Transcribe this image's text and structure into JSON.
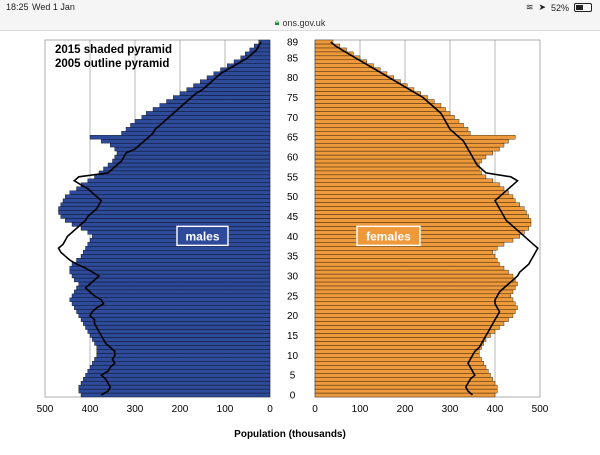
{
  "status_bar": {
    "time": "18:25",
    "date": "Wed 1 Jan",
    "battery": "52%",
    "battery_level": 0.52
  },
  "browser": {
    "url": "ons.gov.uk",
    "lock_icon": "lock-icon"
  },
  "colors": {
    "males": "#2e4a9a",
    "females": "#ef9a3a",
    "outline": "#000000"
  },
  "chart_data": {
    "type": "bar",
    "legend_lines": [
      "2015 shaded pyramid",
      "2005 outline pyramid"
    ],
    "xlabel": "Population (thousands)",
    "xlim": [
      0,
      500
    ],
    "x_ticks_left": [
      "500",
      "400",
      "300",
      "200",
      "100",
      "0"
    ],
    "x_ticks_right": [
      "0",
      "100",
      "200",
      "300",
      "400",
      "500"
    ],
    "age_ticks": [
      "0",
      "5",
      "10",
      "15",
      "20",
      "25",
      "30",
      "35",
      "40",
      "45",
      "50",
      "55",
      "60",
      "65",
      "70",
      "75",
      "80",
      "85",
      "89"
    ],
    "age_range": [
      0,
      89
    ],
    "grid": true,
    "series_labels": {
      "male": "males",
      "female": "females"
    },
    "series": [
      {
        "name": "males",
        "year": "2015",
        "ages": [
          0,
          89
        ],
        "values": [
          420,
          425,
          425,
          420,
          415,
          410,
          405,
          400,
          395,
          390,
          385,
          385,
          385,
          390,
          395,
          400,
          405,
          410,
          415,
          420,
          425,
          430,
          435,
          440,
          445,
          440,
          435,
          430,
          425,
          435,
          440,
          445,
          445,
          440,
          430,
          420,
          415,
          410,
          405,
          400,
          395,
          405,
          420,
          440,
          455,
          465,
          470,
          470,
          465,
          460,
          455,
          445,
          430,
          420,
          405,
          390,
          380,
          370,
          360,
          350,
          345,
          340,
          345,
          355,
          375,
          400,
          330,
          320,
          310,
          300,
          285,
          275,
          260,
          245,
          230,
          215,
          200,
          185,
          170,
          155,
          140,
          125,
          110,
          95,
          80,
          65,
          55,
          45,
          35,
          25
        ]
      },
      {
        "name": "females",
        "year": "2015",
        "ages": [
          0,
          89
        ],
        "values": [
          400,
          405,
          405,
          400,
          395,
          390,
          385,
          380,
          375,
          370,
          365,
          365,
          370,
          375,
          380,
          390,
          400,
          410,
          420,
          430,
          440,
          445,
          450,
          445,
          440,
          435,
          440,
          445,
          450,
          445,
          440,
          430,
          420,
          410,
          405,
          400,
          395,
          405,
          420,
          440,
          455,
          465,
          475,
          480,
          480,
          475,
          470,
          465,
          455,
          445,
          440,
          430,
          420,
          410,
          395,
          380,
          370,
          365,
          365,
          370,
          380,
          395,
          410,
          420,
          430,
          445,
          345,
          340,
          330,
          320,
          310,
          300,
          290,
          280,
          265,
          250,
          235,
          220,
          205,
          190,
          175,
          160,
          145,
          130,
          115,
          100,
          85,
          70,
          55,
          40
        ]
      },
      {
        "name": "males",
        "year": "2005",
        "ages": [
          0,
          89
        ],
        "values": [
          375,
          360,
          355,
          360,
          365,
          375,
          360,
          355,
          345,
          350,
          345,
          345,
          355,
          365,
          370,
          375,
          380,
          385,
          390,
          390,
          400,
          395,
          385,
          370,
          375,
          390,
          400,
          410,
          400,
          390,
          380,
          395,
          410,
          430,
          445,
          455,
          465,
          470,
          460,
          455,
          450,
          440,
          430,
          420,
          410,
          405,
          395,
          385,
          380,
          375,
          385,
          395,
          405,
          420,
          435,
          425,
          360,
          350,
          340,
          330,
          325,
          320,
          300,
          290,
          280,
          270,
          260,
          255,
          245,
          235,
          225,
          215,
          205,
          195,
          185,
          175,
          165,
          150,
          140,
          130,
          120,
          110,
          95,
          80,
          65,
          50,
          40,
          30,
          25,
          20
        ]
      },
      {
        "name": "females",
        "year": "2005",
        "ages": [
          0,
          89
        ],
        "values": [
          350,
          340,
          335,
          340,
          345,
          355,
          350,
          345,
          340,
          345,
          350,
          355,
          365,
          370,
          375,
          380,
          385,
          390,
          395,
          400,
          405,
          410,
          405,
          400,
          400,
          405,
          410,
          420,
          430,
          440,
          450,
          455,
          465,
          475,
          480,
          485,
          490,
          495,
          485,
          475,
          465,
          455,
          445,
          435,
          425,
          420,
          415,
          410,
          405,
          400,
          410,
          420,
          430,
          440,
          450,
          435,
          380,
          370,
          360,
          355,
          350,
          345,
          340,
          335,
          330,
          320,
          310,
          300,
          295,
          290,
          285,
          280,
          270,
          260,
          250,
          240,
          225,
          210,
          195,
          180,
          165,
          150,
          135,
          120,
          105,
          90,
          75,
          60,
          45,
          35
        ]
      }
    ]
  }
}
